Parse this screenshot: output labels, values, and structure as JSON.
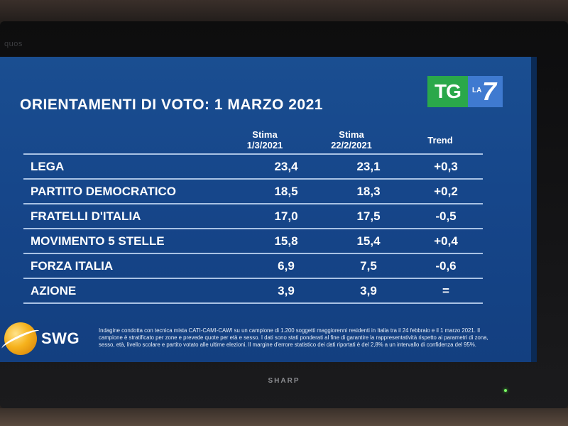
{
  "tv": {
    "bezel_faint_text": "quos",
    "brand": "SHARP"
  },
  "screen": {
    "title": "ORIENTAMENTI DI VOTO: 1 MARZO 2021",
    "logo": {
      "tg": "TG",
      "la": "LA",
      "seven": "7"
    },
    "headers": {
      "col1": [
        "Stima",
        "1/3/2021"
      ],
      "col2": [
        "Stima",
        "22/2/2021"
      ],
      "col3": "Trend"
    },
    "rows": [
      {
        "party": "LEGA",
        "stima_1_3": "23,4",
        "stima_22_2": "23,1",
        "trend": "+0,3"
      },
      {
        "party": "PARTITO DEMOCRATICO",
        "stima_1_3": "18,5",
        "stima_22_2": "18,3",
        "trend": "+0,2"
      },
      {
        "party": "FRATELLI D'ITALIA",
        "stima_1_3": "17,0",
        "stima_22_2": "17,5",
        "trend": "-0,5"
      },
      {
        "party": "MOVIMENTO 5 STELLE",
        "stima_1_3": "15,8",
        "stima_22_2": "15,4",
        "trend": "+0,4"
      },
      {
        "party": "FORZA ITALIA",
        "stima_1_3": "6,9",
        "stima_22_2": "7,5",
        "trend": "-0,6"
      },
      {
        "party": "AZIONE",
        "stima_1_3": "3,9",
        "stima_22_2": "3,9",
        "trend": "="
      }
    ],
    "source": "SWG",
    "disclaimer": "Indagine condotta con tecnica mista CATI-CAMI-CAWI su un campione di 1.200 soggetti maggiorenni residenti in Italia tra il 24 febbraio e il 1 marzo 2021. Il campione è stratificato per zone e prevede quote per età e sesso. I dati sono stati ponderati al fine di garantire la rappresentatività rispetto ai parametri di zona, sesso, età, livello scolare e partito votato alle ultime elezioni. Il margine d'errore statistico dei dati riportati è del 2,8% a un intervallo di confidenza del 95%."
  },
  "colors": {
    "screen_blue": "#16468a",
    "row_rule": "#a9c2e4",
    "tg_green": "#2aa84a",
    "la7_blue": "#3f7ad0",
    "swg_orange": "#f6b21c"
  }
}
